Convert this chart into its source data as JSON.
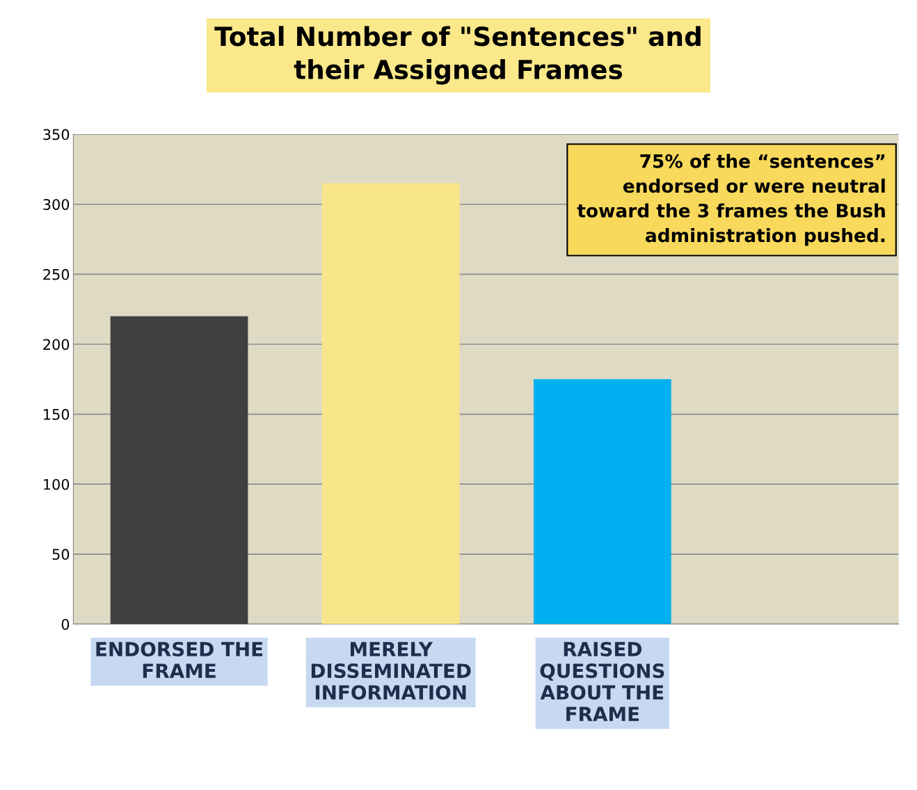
{
  "chart_data": {
    "type": "bar",
    "title": "Total Number of \"Sentences\" and\ntheir Assigned Frames",
    "categories": [
      "ENDORSED THE\nFRAME",
      "MERELY\nDISSEMINATED\nINFORMATION",
      "RAISED\nQUESTIONS\nABOUT THE\nFRAME"
    ],
    "values": [
      220,
      315,
      175
    ],
    "colors": [
      "#404040",
      "#fae68a",
      "#00b0f0"
    ],
    "ylim": [
      0,
      350
    ],
    "yticks": [
      0,
      50,
      100,
      150,
      200,
      250,
      300,
      350
    ],
    "grid": "y",
    "annotations": [
      "75% of the “sentences”\nendorsed or were neutral\ntoward the 3 frames the Bush\nadministration pushed."
    ]
  }
}
